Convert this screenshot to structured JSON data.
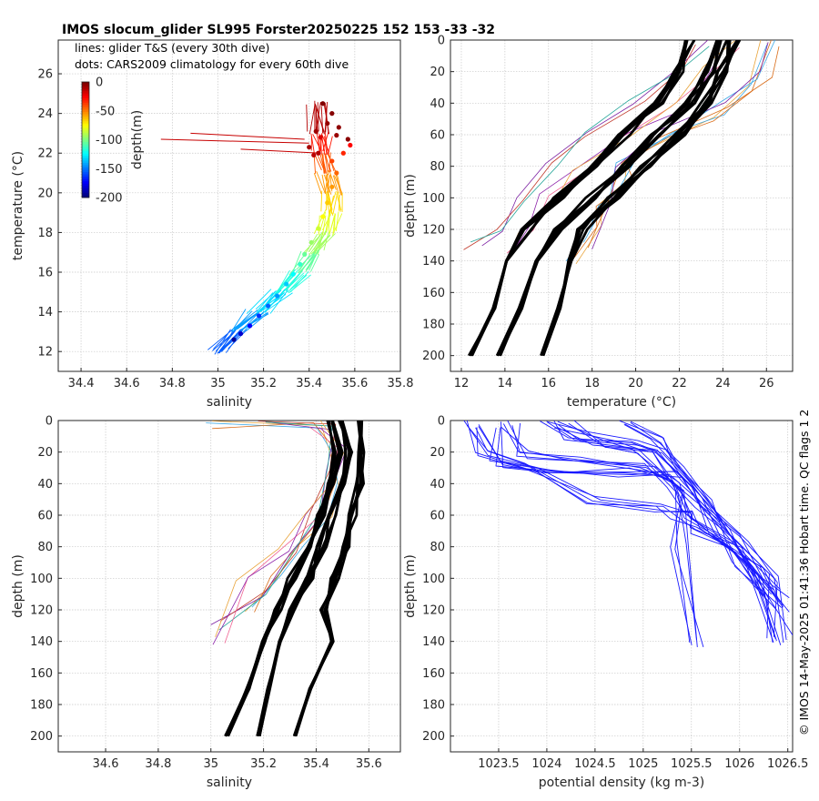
{
  "title": "IMOS slocum_glider SL995 Forster20250225 152  153  -33  -32",
  "side_text": "© IMOS 14-May-2025 01:41:36 Hobart time. QC flags 1  2",
  "chart_data": [
    {
      "id": "ts",
      "type": "scatter",
      "legend_notes": [
        "lines: glider T&S (every 30th dive)",
        "dots: CARS2009 climatology for every 60th dive"
      ],
      "xlabel": "salinity",
      "ylabel": "temperature (°C)",
      "xlim": [
        34.3,
        35.8
      ],
      "ylim": [
        11,
        27.7
      ],
      "xticks": [
        34.4,
        34.6,
        34.8,
        35,
        35.2,
        35.4,
        35.6,
        35.8
      ],
      "xtick_labels": [
        "34.4",
        "34.6",
        "34.8",
        "35",
        "35.2",
        "35.4",
        "35.6",
        "35.8"
      ],
      "yticks": [
        12,
        14,
        16,
        18,
        20,
        22,
        24,
        26
      ],
      "ytick_labels": [
        "12",
        "14",
        "16",
        "18",
        "20",
        "22",
        "24",
        "26"
      ],
      "colorbar": {
        "label": "depth(m)",
        "range": [
          -200,
          0
        ],
        "ticks": [
          0,
          -50,
          -100,
          -150,
          -200
        ],
        "tick_labels": [
          "0",
          "-50",
          "-100",
          "-150",
          "-200"
        ]
      },
      "glider_curve": {
        "salinity": [
          35.0,
          35.08,
          35.18,
          35.28,
          35.36,
          35.42,
          35.47,
          35.5,
          35.5,
          35.48,
          35.46,
          35.45,
          35.44
        ],
        "temperature": [
          12.0,
          13.0,
          14.0,
          15.0,
          16.0,
          17.0,
          18.0,
          19.0,
          20.0,
          21.0,
          22.0,
          23.0,
          24.5
        ]
      },
      "glider_spikes": [
        {
          "salinity": [
            34.75,
            35.4
          ],
          "temperature": [
            22.7,
            22.5
          ]
        },
        {
          "salinity": [
            34.88,
            35.38
          ],
          "temperature": [
            23.0,
            22.7
          ]
        },
        {
          "salinity": [
            35.1,
            35.45
          ],
          "temperature": [
            22.2,
            22.0
          ]
        }
      ],
      "climatology_dots": {
        "salinity": [
          35.07,
          35.1,
          35.14,
          35.18,
          35.22,
          35.26,
          35.3,
          35.33,
          35.36,
          35.38,
          35.41,
          35.44,
          35.46,
          35.48,
          35.5,
          35.52,
          35.5,
          35.55,
          35.58,
          35.45,
          35.42,
          35.4,
          35.43,
          35.48,
          35.53,
          35.57,
          35.5,
          35.46,
          35.44,
          35.52
        ],
        "temperature": [
          12.6,
          12.9,
          13.3,
          13.8,
          14.3,
          14.8,
          15.4,
          15.9,
          16.4,
          16.9,
          17.5,
          18.2,
          18.8,
          19.5,
          20.3,
          21.0,
          21.6,
          22.0,
          22.4,
          22.8,
          21.9,
          22.3,
          23.1,
          23.5,
          23.3,
          22.7,
          24.0,
          24.5,
          22.0,
          22.9
        ],
        "depth": [
          -195,
          -185,
          -175,
          -165,
          -155,
          -145,
          -135,
          -125,
          -115,
          -105,
          -95,
          -85,
          -75,
          -65,
          -55,
          -45,
          -38,
          -32,
          -25,
          -18,
          -12,
          -8,
          -6,
          -4,
          -3,
          -2,
          -1,
          0,
          -10,
          -5
        ]
      }
    },
    {
      "id": "temperature_profile",
      "type": "line",
      "xlabel": "temperature (°C)",
      "ylabel": "depth (m)",
      "xlim": [
        11.5,
        27.2
      ],
      "ylim": [
        210,
        0
      ],
      "xticks": [
        12,
        14,
        16,
        18,
        20,
        22,
        24,
        26
      ],
      "xtick_labels": [
        "12",
        "14",
        "16",
        "18",
        "20",
        "22",
        "24",
        "26"
      ],
      "yticks": [
        0,
        20,
        40,
        60,
        80,
        100,
        120,
        140,
        160,
        180,
        200
      ],
      "ytick_labels": [
        "0",
        "20",
        "40",
        "60",
        "80",
        "100",
        "120",
        "140",
        "160",
        "180",
        "200"
      ],
      "climatology_profiles": [
        {
          "x": [
            22.5,
            22.0,
            21.0,
            19.5,
            18.0,
            16.5,
            15.0,
            14.0,
            13.5,
            12.4
          ],
          "y": [
            0,
            20,
            40,
            60,
            80,
            100,
            120,
            140,
            170,
            200
          ]
        },
        {
          "x": [
            24.0,
            23.4,
            22.5,
            21.0,
            19.5,
            18.0,
            16.5,
            15.5,
            14.7,
            13.7
          ],
          "y": [
            0,
            20,
            40,
            60,
            80,
            100,
            120,
            140,
            170,
            200
          ]
        },
        {
          "x": [
            24.5,
            24.0,
            23.2,
            22.0,
            20.5,
            19.0,
            17.5,
            17.0,
            16.5,
            15.7
          ],
          "y": [
            0,
            20,
            40,
            60,
            80,
            100,
            120,
            140,
            170,
            200
          ]
        }
      ],
      "glider_profiles": [
        {
          "x": [
            26.0,
            25.5,
            24.0,
            21.5,
            20.0,
            19.5,
            18.5,
            18.0,
            17.0
          ],
          "y": [
            2,
            30,
            50,
            60,
            75,
            90,
            105,
            120,
            140
          ]
        },
        {
          "x": [
            23.0,
            22.0,
            20.0,
            18.0,
            16.0,
            14.5,
            13.5,
            12.5
          ],
          "y": [
            2,
            20,
            40,
            60,
            80,
            100,
            120,
            130
          ]
        },
        {
          "x": [
            24.5,
            23.5,
            22.0,
            19.5,
            17.5,
            16.0,
            15.0,
            14.0
          ],
          "y": [
            2,
            20,
            40,
            60,
            80,
            100,
            120,
            138
          ]
        },
        {
          "x": [
            26.3,
            26.0,
            24.0,
            21.0,
            19.0,
            18.5,
            18.0
          ],
          "y": [
            2,
            22,
            40,
            60,
            80,
            100,
            130
          ]
        }
      ]
    },
    {
      "id": "salinity_profile",
      "type": "line",
      "xlabel": "salinity",
      "ylabel": "depth (m)",
      "xlim": [
        34.42,
        35.72
      ],
      "ylim": [
        210,
        0
      ],
      "xticks": [
        34.6,
        34.8,
        35,
        35.2,
        35.4,
        35.6
      ],
      "xtick_labels": [
        "34.6",
        "34.8",
        "35",
        "35.2",
        "35.4",
        "35.6"
      ],
      "yticks": [
        0,
        20,
        40,
        60,
        80,
        100,
        120,
        140,
        160,
        180,
        200
      ],
      "ytick_labels": [
        "0",
        "20",
        "40",
        "60",
        "80",
        "100",
        "120",
        "140",
        "160",
        "180",
        "200"
      ],
      "climatology_profiles": [
        {
          "x": [
            35.45,
            35.48,
            35.46,
            35.42,
            35.37,
            35.31,
            35.25,
            35.2,
            35.14,
            35.06
          ],
          "y": [
            0,
            20,
            40,
            60,
            80,
            100,
            120,
            140,
            170,
            200
          ]
        },
        {
          "x": [
            35.5,
            35.52,
            35.5,
            35.46,
            35.42,
            35.37,
            35.3,
            35.26,
            35.22,
            35.18
          ],
          "y": [
            0,
            20,
            40,
            60,
            80,
            100,
            120,
            140,
            170,
            200
          ]
        },
        {
          "x": [
            35.56,
            35.58,
            35.57,
            35.54,
            35.51,
            35.47,
            35.43,
            35.46,
            35.38,
            35.32
          ],
          "y": [
            0,
            20,
            40,
            60,
            80,
            100,
            120,
            140,
            170,
            200
          ]
        }
      ],
      "glider_profiles": [
        {
          "x": [
            35.0,
            35.4,
            35.45,
            35.5,
            35.45,
            35.35,
            35.25,
            35.15
          ],
          "y": [
            3,
            4,
            20,
            40,
            60,
            80,
            100,
            120
          ]
        },
        {
          "x": [
            35.2,
            35.45,
            35.45,
            35.4,
            35.3,
            35.2,
            35.02
          ],
          "y": [
            2,
            5,
            30,
            60,
            85,
            110,
            130
          ]
        },
        {
          "x": [
            35.4,
            35.5,
            35.45,
            35.38,
            35.28,
            35.12,
            35.03
          ],
          "y": [
            2,
            20,
            40,
            60,
            80,
            100,
            140
          ]
        }
      ]
    },
    {
      "id": "density_profile",
      "type": "line",
      "xlabel": "potential density (kg m-3)",
      "ylabel": "depth (m)",
      "xlim": [
        1023.0,
        1026.55
      ],
      "ylim": [
        210,
        0
      ],
      "xticks": [
        1023.5,
        1024,
        1024.5,
        1025,
        1025.5,
        1026,
        1026.5
      ],
      "xtick_labels": [
        "1023.5",
        "1024",
        "1024.5",
        "1025",
        "1025.5",
        "1026",
        "1026.5"
      ],
      "yticks": [
        0,
        20,
        40,
        60,
        80,
        100,
        120,
        140,
        160,
        180,
        200
      ],
      "ytick_labels": [
        "0",
        "20",
        "40",
        "60",
        "80",
        "100",
        "120",
        "140",
        "160",
        "180",
        "200"
      ],
      "glider_profiles": [
        {
          "x": [
            1023.2,
            1023.3,
            1023.8,
            1024.5,
            1025.2,
            1025.4,
            1025.6,
            1025.9,
            1026.2,
            1026.4
          ],
          "y": [
            2,
            20,
            30,
            50,
            55,
            60,
            70,
            80,
            95,
            115
          ]
        },
        {
          "x": [
            1023.6,
            1023.7,
            1024.3,
            1025.0,
            1025.3,
            1025.5,
            1025.9,
            1026.3
          ],
          "y": [
            2,
            22,
            25,
            30,
            40,
            60,
            80,
            110
          ]
        },
        {
          "x": [
            1024.0,
            1024.3,
            1024.9,
            1025.2,
            1025.4,
            1025.8,
            1026.2,
            1026.45
          ],
          "y": [
            2,
            10,
            15,
            20,
            40,
            70,
            95,
            140
          ]
        },
        {
          "x": [
            1024.2,
            1024.6,
            1025.0,
            1025.3,
            1025.4,
            1025.5
          ],
          "y": [
            2,
            15,
            20,
            45,
            80,
            142
          ]
        },
        {
          "x": [
            1023.4,
            1023.5,
            1024.1,
            1024.8,
            1025.3,
            1025.6,
            1026.0,
            1026.3,
            1026.4
          ],
          "y": [
            2,
            28,
            32,
            33,
            35,
            55,
            75,
            100,
            140
          ]
        },
        {
          "x": [
            1024.8,
            1025.1,
            1025.4,
            1025.6,
            1026.0,
            1026.4
          ],
          "y": [
            2,
            12,
            30,
            50,
            90,
            120
          ]
        }
      ]
    }
  ]
}
